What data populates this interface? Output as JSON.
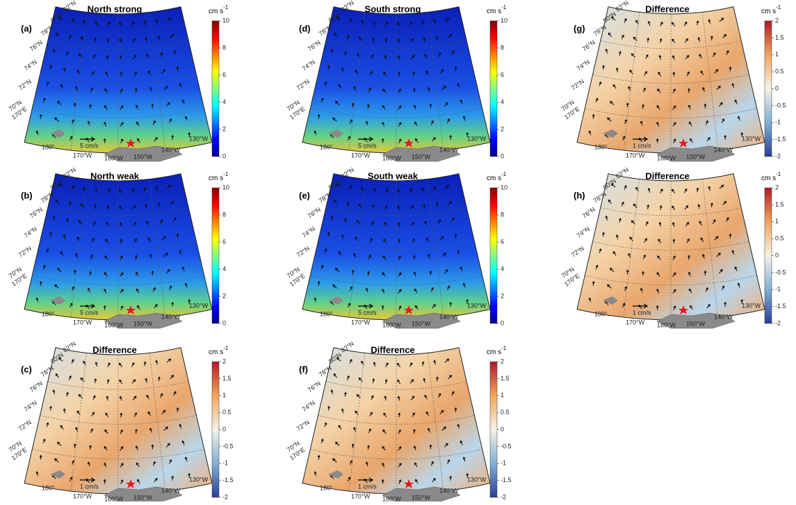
{
  "lat_labels": [
    "82°N",
    "80°N",
    "78°N",
    "76°N",
    "74°N",
    "72°N",
    "70°N"
  ],
  "lon_labels": [
    "170°E",
    "180°",
    "170°W",
    "160°W",
    "150°W",
    "140°W",
    "130°W"
  ],
  "unit": "cm s",
  "unit_exponent": "-1",
  "panels": [
    {
      "label": "(a)",
      "title": "North strong",
      "kind": "speed",
      "scale_label": "5 cm/s",
      "cbar_lim": [
        0,
        10
      ],
      "cbar_ticks": [
        0,
        2,
        4,
        6,
        8,
        10
      ]
    },
    {
      "label": "(b)",
      "title": "North weak",
      "kind": "speed",
      "scale_label": "5 cm/s",
      "cbar_lim": [
        0,
        10
      ],
      "cbar_ticks": [
        0,
        2,
        4,
        6,
        8,
        10
      ]
    },
    {
      "label": "(c)",
      "title": "Difference",
      "kind": "diff",
      "scale_label": "1 cm/s",
      "cbar_lim": [
        -2,
        2
      ],
      "cbar_ticks": [
        -2,
        -1.5,
        -1,
        -0.5,
        0,
        0.5,
        1,
        1.5,
        2
      ]
    },
    {
      "label": "(d)",
      "title": "South strong",
      "kind": "speed",
      "scale_label": "5 cm/s",
      "cbar_lim": [
        0,
        10
      ],
      "cbar_ticks": [
        0,
        2,
        4,
        6,
        8,
        10
      ]
    },
    {
      "label": "(e)",
      "title": "South weak",
      "kind": "speed",
      "scale_label": "5 cm/s",
      "cbar_lim": [
        0,
        10
      ],
      "cbar_ticks": [
        0,
        2,
        4,
        6,
        8,
        10
      ]
    },
    {
      "label": "(f)",
      "title": "Difference",
      "kind": "diff",
      "scale_label": "1 cm/s",
      "cbar_lim": [
        -2,
        2
      ],
      "cbar_ticks": [
        -2,
        -1.5,
        -1,
        -0.5,
        0,
        0.5,
        1,
        1.5,
        2
      ]
    },
    {
      "label": "(g)",
      "title": "Difference",
      "kind": "diff",
      "scale_label": "1 cm/s",
      "cbar_lim": [
        -2,
        2
      ],
      "cbar_ticks": [
        -2,
        -1.5,
        -1,
        -0.5,
        0,
        0.5,
        1,
        1.5,
        2
      ]
    },
    {
      "label": "(h)",
      "title": "Difference",
      "kind": "diff",
      "scale_label": "1 cm/s",
      "cbar_lim": [
        -2,
        2
      ],
      "cbar_ticks": [
        -2,
        -1.5,
        -1,
        -0.5,
        0,
        0.5,
        1,
        1.5,
        2
      ]
    }
  ]
}
